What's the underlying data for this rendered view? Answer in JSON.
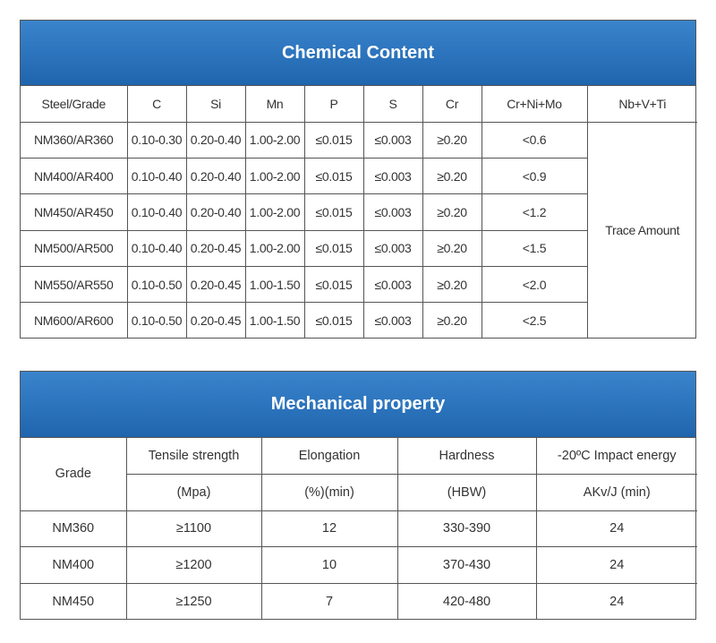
{
  "chemical": {
    "title": "Chemical Content",
    "headers": [
      "Steel/Grade",
      "C",
      "Si",
      "Mn",
      "P",
      "S",
      "Cr",
      "Cr+Ni+Mo",
      "Nb+V+Ti"
    ],
    "rows": [
      [
        "NM360/AR360",
        "0.10-0.30",
        "0.20-0.40",
        "1.00-2.00",
        "≤0.015",
        "≤0.003",
        "≥0.20",
        "<0.6"
      ],
      [
        "NM400/AR400",
        "0.10-0.40",
        "0.20-0.40",
        "1.00-2.00",
        "≤0.015",
        "≤0.003",
        "≥0.20",
        "<0.9"
      ],
      [
        "NM450/AR450",
        "0.10-0.40",
        "0.20-0.40",
        "1.00-2.00",
        "≤0.015",
        "≤0.003",
        "≥0.20",
        "<1.2"
      ],
      [
        "NM500/AR500",
        "0.10-0.40",
        "0.20-0.45",
        "1.00-2.00",
        "≤0.015",
        "≤0.003",
        "≥0.20",
        "<1.5"
      ],
      [
        "NM550/AR550",
        "0.10-0.50",
        "0.20-0.45",
        "1.00-1.50",
        "≤0.015",
        "≤0.003",
        "≥0.20",
        "<2.0"
      ],
      [
        "NM600/AR600",
        "0.10-0.50",
        "0.20-0.45",
        "1.00-1.50",
        "≤0.015",
        "≤0.003",
        "≥0.20",
        "<2.5"
      ]
    ],
    "merged_value": "Trace Amount"
  },
  "mechanical": {
    "title": "Mechanical property",
    "grade_header": "Grade",
    "headers": [
      "Tensile strength",
      "Elongation",
      "Hardness",
      "-20ºC Impact energy"
    ],
    "units": [
      "(Mpa)",
      "(%)(min)",
      "(HBW)",
      "AKv/J (min)"
    ],
    "rows": [
      [
        "NM360",
        "≥1100",
        "12",
        "330-390",
        "24"
      ],
      [
        "NM400",
        "≥1200",
        "10",
        "370-430",
        "24"
      ],
      [
        "NM450",
        "≥1250",
        "7",
        "420-480",
        "24"
      ]
    ]
  },
  "colors": {
    "banner": "#2a74bf",
    "banner_text": "#ffffff",
    "border": "#555555",
    "text": "#333333"
  }
}
